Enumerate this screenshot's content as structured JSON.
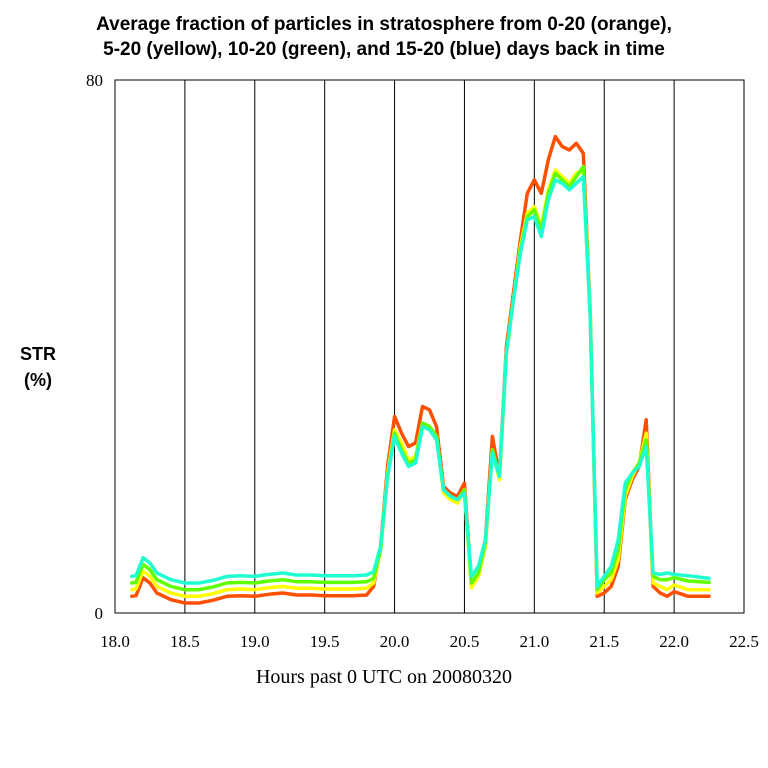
{
  "chart_data": {
    "type": "line",
    "title_lines": [
      "Average fraction of particles in stratosphere from 0-20 (orange),",
      "5-20 (yellow), 10-20 (green), and 15-20 (blue) days back in time"
    ],
    "xlabel": "Hours past 0 UTC on 20080320",
    "ylabel_lines": [
      "STR",
      "(%)"
    ],
    "xlim": [
      18.0,
      22.5
    ],
    "ylim": [
      0,
      80
    ],
    "x_ticks": [
      "18.0",
      "18.5",
      "19.0",
      "19.5",
      "20.0",
      "20.5",
      "21.0",
      "21.5",
      "22.0",
      "22.5"
    ],
    "x_tick_values": [
      18.0,
      18.5,
      19.0,
      19.5,
      20.0,
      20.5,
      21.0,
      21.5,
      22.0,
      22.5
    ],
    "y_ticks": [
      "0",
      "80"
    ],
    "y_tick_values": [
      0,
      80
    ],
    "vertical_grid": true,
    "x": [
      18.12,
      18.15,
      18.2,
      18.25,
      18.3,
      18.4,
      18.5,
      18.6,
      18.7,
      18.8,
      18.9,
      19.0,
      19.1,
      19.2,
      19.3,
      19.4,
      19.5,
      19.6,
      19.7,
      19.8,
      19.85,
      19.9,
      19.95,
      20.0,
      20.05,
      20.1,
      20.15,
      20.2,
      20.25,
      20.3,
      20.35,
      20.4,
      20.45,
      20.5,
      20.55,
      20.6,
      20.65,
      20.7,
      20.75,
      20.8,
      20.85,
      20.9,
      20.95,
      21.0,
      21.05,
      21.1,
      21.15,
      21.2,
      21.25,
      21.3,
      21.35,
      21.4,
      21.45,
      21.5,
      21.55,
      21.6,
      21.65,
      21.7,
      21.75,
      21.8,
      21.85,
      21.9,
      21.95,
      22.0,
      22.1,
      22.25
    ],
    "series": [
      {
        "name": "0-20 (orange)",
        "color": "#ff5000",
        "values": [
          2.5,
          2.6,
          5.3,
          4.5,
          3.0,
          2.0,
          1.5,
          1.5,
          1.9,
          2.5,
          2.6,
          2.5,
          2.8,
          3.0,
          2.7,
          2.7,
          2.6,
          2.6,
          2.6,
          2.7,
          4.0,
          10.0,
          22.0,
          29.5,
          27.0,
          25.0,
          25.5,
          31.0,
          30.5,
          28.0,
          19.0,
          18.0,
          17.5,
          19.5,
          4.5,
          6.0,
          11.0,
          26.5,
          20.5,
          40.0,
          48.0,
          56.0,
          63.0,
          65.0,
          63.0,
          68.0,
          71.5,
          70.0,
          69.5,
          70.5,
          69.0,
          45.0,
          2.5,
          3.0,
          4.0,
          7.0,
          17.0,
          20.0,
          22.0,
          29.0,
          4.0,
          3.0,
          2.5,
          3.2,
          2.5,
          2.5
        ]
      },
      {
        "name": "5-20 (yellow)",
        "color": "#ffff00",
        "values": [
          3.5,
          3.6,
          6.3,
          5.5,
          4.0,
          3.0,
          2.5,
          2.5,
          2.9,
          3.5,
          3.6,
          3.5,
          3.8,
          4.0,
          3.7,
          3.7,
          3.6,
          3.6,
          3.6,
          3.7,
          4.5,
          9.5,
          21.0,
          27.5,
          25.5,
          23.0,
          23.5,
          28.5,
          28.0,
          26.5,
          18.0,
          17.0,
          16.5,
          18.5,
          3.8,
          5.5,
          10.0,
          24.5,
          20.0,
          39.0,
          47.0,
          55.0,
          60.0,
          61.0,
          58.0,
          63.5,
          66.5,
          65.5,
          64.5,
          66.0,
          66.5,
          45.0,
          3.0,
          4.0,
          5.0,
          8.0,
          17.5,
          20.5,
          22.5,
          27.0,
          4.5,
          4.0,
          3.5,
          4.2,
          3.5,
          3.5
        ]
      },
      {
        "name": "10-20 (green)",
        "color": "#60ff00",
        "values": [
          4.5,
          4.6,
          7.3,
          6.5,
          5.0,
          4.0,
          3.5,
          3.5,
          3.9,
          4.5,
          4.6,
          4.5,
          4.8,
          5.0,
          4.7,
          4.7,
          4.6,
          4.6,
          4.6,
          4.7,
          5.2,
          9.5,
          20.5,
          27.0,
          24.5,
          22.5,
          23.0,
          28.5,
          28.0,
          26.5,
          18.5,
          17.5,
          17.0,
          18.5,
          4.5,
          6.0,
          10.5,
          24.5,
          20.5,
          39.0,
          47.0,
          54.5,
          59.5,
          60.5,
          57.5,
          63.0,
          66.0,
          65.0,
          64.0,
          65.5,
          67.0,
          45.0,
          3.5,
          5.0,
          6.0,
          9.5,
          18.5,
          21.0,
          22.5,
          26.0,
          5.5,
          5.0,
          5.0,
          5.3,
          4.8,
          4.6
        ]
      },
      {
        "name": "15-20 (blue)",
        "color": "#20ffd0",
        "values": [
          5.5,
          5.6,
          8.3,
          7.5,
          6.0,
          5.0,
          4.5,
          4.5,
          4.9,
          5.5,
          5.6,
          5.5,
          5.8,
          6.0,
          5.7,
          5.7,
          5.6,
          5.6,
          5.6,
          5.7,
          6.2,
          10.0,
          20.5,
          26.5,
          24.0,
          22.0,
          22.5,
          28.0,
          27.5,
          26.0,
          18.5,
          17.5,
          17.0,
          18.0,
          5.5,
          7.0,
          11.0,
          24.0,
          20.5,
          39.0,
          47.0,
          54.0,
          59.0,
          59.5,
          56.5,
          62.0,
          65.0,
          64.5,
          63.5,
          64.5,
          65.5,
          44.5,
          4.0,
          5.5,
          7.0,
          11.0,
          19.5,
          21.0,
          22.0,
          25.0,
          6.0,
          5.8,
          6.0,
          5.8,
          5.6,
          5.2
        ]
      }
    ]
  }
}
